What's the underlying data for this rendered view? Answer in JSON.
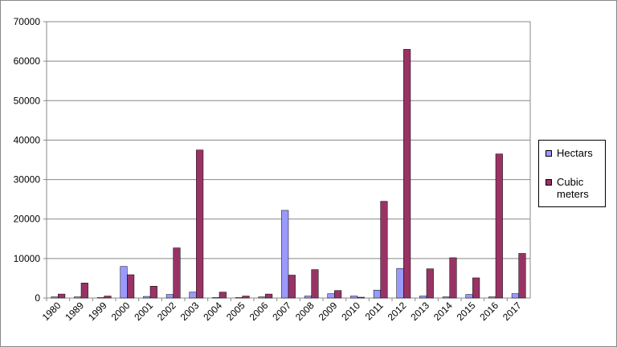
{
  "chart_data": {
    "type": "bar",
    "categories": [
      "1980",
      "1989",
      "1999",
      "2000",
      "2001",
      "2002",
      "2003",
      "2004",
      "2005",
      "2006",
      "2007",
      "2008",
      "2009",
      "2010",
      "2011",
      "2012",
      "2013",
      "2014",
      "2015",
      "2016",
      "2017"
    ],
    "series": [
      {
        "name": "Hectars",
        "color": "#9999ff",
        "values": [
          300,
          300,
          100,
          8000,
          400,
          900,
          1500,
          100,
          100,
          300,
          22200,
          500,
          1100,
          500,
          2000,
          7500,
          500,
          300,
          900,
          300,
          1100
        ]
      },
      {
        "name": "Cubic meters",
        "color": "#993366",
        "values": [
          1000,
          3800,
          500,
          5900,
          3000,
          12700,
          37500,
          1500,
          500,
          1000,
          5800,
          7200,
          1900,
          200,
          24500,
          63000,
          7400,
          10200,
          5100,
          36500,
          11300
        ]
      }
    ],
    "ylim": [
      0,
      70000
    ],
    "yticks": [
      0,
      10000,
      20000,
      30000,
      40000,
      50000,
      60000,
      70000
    ],
    "grid": true,
    "legend": "right"
  }
}
